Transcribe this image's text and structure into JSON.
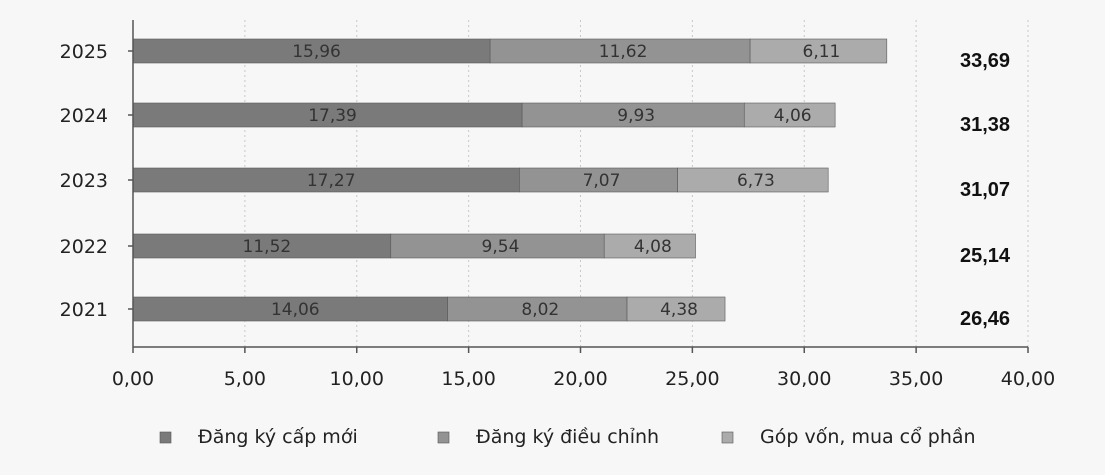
{
  "chart_data": {
    "type": "bar",
    "orientation": "horizontal",
    "stacked": true,
    "categories": [
      "2025",
      "2024",
      "2023",
      "2022",
      "2021"
    ],
    "series": [
      {
        "name": "Đăng ký cấp mới",
        "color": "#7a7a7a",
        "values": [
          15.96,
          17.39,
          17.27,
          11.52,
          14.06
        ],
        "labels": [
          "15,96",
          "17,39",
          "17,27",
          "11,52",
          "14,06"
        ]
      },
      {
        "name": "Đăng ký điều chỉnh",
        "color": "#939393",
        "values": [
          11.62,
          9.93,
          7.07,
          9.54,
          8.02
        ],
        "labels": [
          "11,62",
          "9,93",
          "7,07",
          "9,54",
          "8,02"
        ]
      },
      {
        "name": "Góp vốn, mua cổ phần",
        "color": "#ababab",
        "values": [
          6.11,
          4.06,
          6.73,
          4.08,
          4.38
        ],
        "labels": [
          "6,11",
          "4,06",
          "6,73",
          "4,08",
          "4,38"
        ]
      }
    ],
    "totals": [
      "33,69",
      "31,38",
      "31,07",
      "25,14",
      "26,46"
    ],
    "xlim": [
      0,
      40
    ],
    "xticks": [
      "0,00",
      "5,00",
      "10,00",
      "15,00",
      "20,00",
      "25,00",
      "30,00",
      "35,00",
      "40,00"
    ],
    "grid": true,
    "legend": "bottom"
  }
}
